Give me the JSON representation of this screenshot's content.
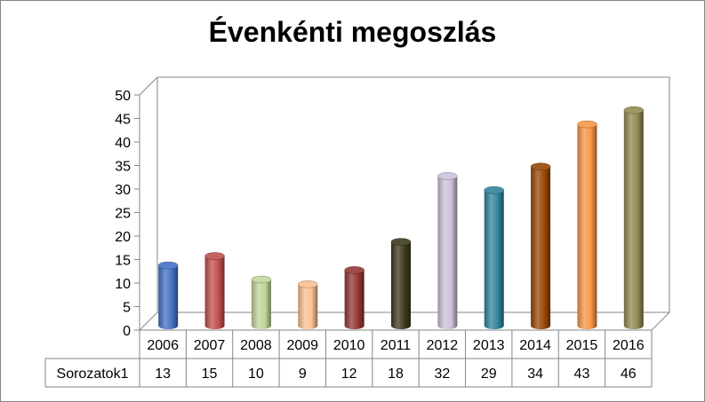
{
  "chart_data": {
    "type": "bar",
    "title": "Évenkénti megoszlás",
    "categories": [
      "2006",
      "2007",
      "2008",
      "2009",
      "2010",
      "2011",
      "2012",
      "2013",
      "2014",
      "2015",
      "2016"
    ],
    "series": [
      {
        "name": "Sorozatok1",
        "values": [
          13,
          15,
          10,
          9,
          12,
          18,
          32,
          29,
          34,
          43,
          46
        ]
      }
    ],
    "ylim": [
      0,
      50
    ],
    "yticks": [
      0,
      5,
      10,
      15,
      20,
      25,
      30,
      35,
      40,
      45,
      50
    ],
    "grid": false,
    "data_table": true,
    "bar_style": "3d-cylinder",
    "colors": [
      "#4472C4",
      "#C0504D",
      "#C3D69B",
      "#FAC090",
      "#953735",
      "#3D3A1F",
      "#CCC1DA",
      "#31859C",
      "#984807",
      "#F79646",
      "#948A54"
    ]
  }
}
